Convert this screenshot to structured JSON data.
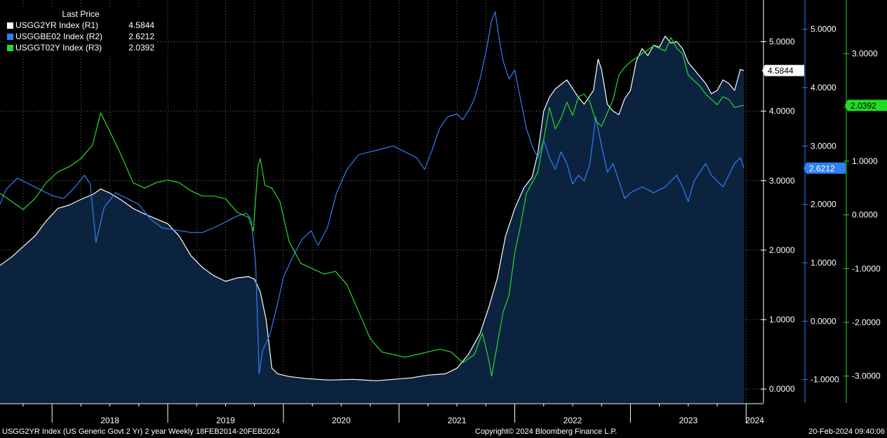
{
  "legend": {
    "title": "Last Price",
    "rows": [
      {
        "name": "USGG2YR Index  (R1)",
        "value": "4.5844",
        "color": "#ffffff"
      },
      {
        "name": "USGGBE02 Index  (R2)",
        "value": "2.6212",
        "color": "#2f7ff5"
      },
      {
        "name": "USGGT02Y Index  (R3)",
        "value": "2.0392",
        "color": "#22dd22"
      }
    ]
  },
  "footer": {
    "description": "USGG2YR Index (US Generic Govt 2 Yr) 2 year  Weekly 18FEB2014-20FEB2024",
    "copyright": "Copyright© 2024 Bloomberg Finance L.P.",
    "timestamp": "20-Feb-2024 09:40:06"
  },
  "chart_data": {
    "type": "line",
    "x_tick_labels": [
      "2018",
      "2019",
      "2020",
      "2021",
      "2022",
      "2023",
      "2024"
    ],
    "x_range": [
      2017.55,
      2024.15
    ],
    "grid": true,
    "legend_position": "top-left",
    "axes": [
      {
        "id": "R1",
        "ylim": [
          -0.2,
          5.6
        ],
        "ticks": [
          0,
          1,
          2,
          3,
          4,
          5
        ],
        "tick_labels": [
          "0.0000",
          "1.0000",
          "2.0000",
          "3.0000",
          "4.0000",
          "5.0000"
        ],
        "color": "#ffffff",
        "last_value": "4.5844",
        "tag_bg": "#ffffff",
        "tag_fg": "#000000"
      },
      {
        "id": "R2",
        "ylim": [
          -1.4,
          5.5
        ],
        "ticks": [
          -1,
          0,
          1,
          2,
          3,
          4,
          5
        ],
        "tick_labels": [
          "-1.0000",
          "0.0000",
          "1.0000",
          "2.0000",
          "3.0000",
          "4.0000",
          "5.0000"
        ],
        "color": "#2f7ff5",
        "last_value": "2.6212",
        "tag_bg": "#2f7ff5",
        "tag_fg": "#ffffff"
      },
      {
        "id": "R3",
        "ylim": [
          -3.5,
          4.0
        ],
        "ticks": [
          -3,
          -2,
          -1,
          0,
          1,
          2,
          3
        ],
        "tick_labels": [
          "-3.0000",
          "-2.0000",
          "-1.0000",
          "0.0000",
          "1.0000",
          "2.0000",
          "3.0000"
        ],
        "color": "#22dd22",
        "last_value": "2.0392",
        "tag_bg": "#22dd22",
        "tag_fg": "#000000"
      }
    ],
    "series": [
      {
        "name": "USGG2YR Index",
        "axis": "R1",
        "color": "#ffffff",
        "area": true,
        "area_color": "#0c2340",
        "points": [
          [
            2017.55,
            1.78
          ],
          [
            2017.65,
            1.9
          ],
          [
            2017.75,
            2.05
          ],
          [
            2017.85,
            2.2
          ],
          [
            2017.95,
            2.42
          ],
          [
            2018.05,
            2.6
          ],
          [
            2018.15,
            2.65
          ],
          [
            2018.25,
            2.73
          ],
          [
            2018.35,
            2.8
          ],
          [
            2018.42,
            2.88
          ],
          [
            2018.5,
            2.82
          ],
          [
            2018.6,
            2.72
          ],
          [
            2018.7,
            2.6
          ],
          [
            2018.8,
            2.52
          ],
          [
            2018.9,
            2.45
          ],
          [
            2019.0,
            2.38
          ],
          [
            2019.1,
            2.2
          ],
          [
            2019.2,
            1.92
          ],
          [
            2019.3,
            1.75
          ],
          [
            2019.4,
            1.63
          ],
          [
            2019.5,
            1.55
          ],
          [
            2019.6,
            1.6
          ],
          [
            2019.7,
            1.62
          ],
          [
            2019.75,
            1.58
          ],
          [
            2019.8,
            1.4
          ],
          [
            2019.85,
            1.0
          ],
          [
            2019.9,
            0.3
          ],
          [
            2019.95,
            0.22
          ],
          [
            2020.05,
            0.18
          ],
          [
            2020.2,
            0.15
          ],
          [
            2020.4,
            0.13
          ],
          [
            2020.6,
            0.14
          ],
          [
            2020.8,
            0.12
          ],
          [
            2020.95,
            0.14
          ],
          [
            2021.1,
            0.16
          ],
          [
            2021.25,
            0.2
          ],
          [
            2021.4,
            0.22
          ],
          [
            2021.5,
            0.3
          ],
          [
            2021.6,
            0.5
          ],
          [
            2021.7,
            0.8
          ],
          [
            2021.78,
            1.2
          ],
          [
            2021.85,
            1.6
          ],
          [
            2021.92,
            2.2
          ],
          [
            2022.0,
            2.6
          ],
          [
            2022.08,
            2.9
          ],
          [
            2022.15,
            3.05
          ],
          [
            2022.2,
            3.4
          ],
          [
            2022.25,
            4.0
          ],
          [
            2022.3,
            4.2
          ],
          [
            2022.35,
            4.32
          ],
          [
            2022.45,
            4.45
          ],
          [
            2022.55,
            4.2
          ],
          [
            2022.6,
            4.1
          ],
          [
            2022.68,
            4.3
          ],
          [
            2022.72,
            4.75
          ],
          [
            2022.75,
            4.6
          ],
          [
            2022.8,
            4.1
          ],
          [
            2022.85,
            4.0
          ],
          [
            2022.9,
            3.95
          ],
          [
            2022.95,
            4.18
          ],
          [
            2023.0,
            4.3
          ],
          [
            2023.05,
            4.72
          ],
          [
            2023.1,
            4.9
          ],
          [
            2023.15,
            4.8
          ],
          [
            2023.2,
            4.95
          ],
          [
            2023.25,
            4.92
          ],
          [
            2023.3,
            5.08
          ],
          [
            2023.35,
            4.98
          ],
          [
            2023.4,
            5.0
          ],
          [
            2023.45,
            4.9
          ],
          [
            2023.5,
            4.7
          ],
          [
            2023.55,
            4.6
          ],
          [
            2023.6,
            4.5
          ],
          [
            2023.65,
            4.4
          ],
          [
            2023.7,
            4.25
          ],
          [
            2023.75,
            4.3
          ],
          [
            2023.8,
            4.45
          ],
          [
            2023.85,
            4.4
          ],
          [
            2023.9,
            4.3
          ],
          [
            2023.95,
            4.6
          ],
          [
            2023.98,
            4.5844
          ]
        ]
      },
      {
        "name": "USGGBE02 Index",
        "axis": "R2",
        "color": "#2f7ff5",
        "area": false,
        "points": [
          [
            2017.55,
            2.0
          ],
          [
            2017.6,
            2.25
          ],
          [
            2017.7,
            2.45
          ],
          [
            2017.8,
            2.35
          ],
          [
            2017.9,
            2.25
          ],
          [
            2018.0,
            2.15
          ],
          [
            2018.1,
            2.1
          ],
          [
            2018.2,
            2.3
          ],
          [
            2018.28,
            2.5
          ],
          [
            2018.33,
            2.35
          ],
          [
            2018.38,
            1.35
          ],
          [
            2018.45,
            1.95
          ],
          [
            2018.55,
            2.2
          ],
          [
            2018.65,
            2.1
          ],
          [
            2018.75,
            2.0
          ],
          [
            2018.85,
            1.75
          ],
          [
            2018.95,
            1.6
          ],
          [
            2019.0,
            1.58
          ],
          [
            2019.1,
            1.55
          ],
          [
            2019.2,
            1.52
          ],
          [
            2019.3,
            1.52
          ],
          [
            2019.4,
            1.6
          ],
          [
            2019.5,
            1.7
          ],
          [
            2019.6,
            1.8
          ],
          [
            2019.68,
            1.85
          ],
          [
            2019.72,
            1.75
          ],
          [
            2019.76,
            1.0
          ],
          [
            2019.79,
            -0.9
          ],
          [
            2019.82,
            -0.5
          ],
          [
            2019.88,
            -0.25
          ],
          [
            2019.95,
            0.3
          ],
          [
            2020.0,
            0.75
          ],
          [
            2020.08,
            1.1
          ],
          [
            2020.16,
            1.4
          ],
          [
            2020.24,
            1.55
          ],
          [
            2020.3,
            1.3
          ],
          [
            2020.38,
            1.6
          ],
          [
            2020.46,
            2.2
          ],
          [
            2020.55,
            2.6
          ],
          [
            2020.65,
            2.85
          ],
          [
            2020.75,
            2.9
          ],
          [
            2020.85,
            2.95
          ],
          [
            2020.95,
            3.0
          ],
          [
            2021.05,
            2.9
          ],
          [
            2021.15,
            2.8
          ],
          [
            2021.22,
            2.6
          ],
          [
            2021.28,
            2.9
          ],
          [
            2021.35,
            3.3
          ],
          [
            2021.42,
            3.5
          ],
          [
            2021.5,
            3.55
          ],
          [
            2021.55,
            3.45
          ],
          [
            2021.6,
            3.6
          ],
          [
            2021.65,
            3.8
          ],
          [
            2021.7,
            4.15
          ],
          [
            2021.75,
            4.6
          ],
          [
            2021.8,
            5.15
          ],
          [
            2021.83,
            5.3
          ],
          [
            2021.86,
            4.9
          ],
          [
            2021.9,
            4.45
          ],
          [
            2021.95,
            4.15
          ],
          [
            2022.0,
            4.3
          ],
          [
            2022.05,
            3.8
          ],
          [
            2022.1,
            3.3
          ],
          [
            2022.15,
            3.0
          ],
          [
            2022.2,
            2.8
          ],
          [
            2022.25,
            3.1
          ],
          [
            2022.3,
            2.8
          ],
          [
            2022.35,
            2.6
          ],
          [
            2022.4,
            2.9
          ],
          [
            2022.45,
            2.7
          ],
          [
            2022.5,
            2.35
          ],
          [
            2022.55,
            2.5
          ],
          [
            2022.6,
            2.4
          ],
          [
            2022.65,
            2.7
          ],
          [
            2022.7,
            3.5
          ],
          [
            2022.75,
            3.0
          ],
          [
            2022.8,
            2.55
          ],
          [
            2022.85,
            2.7
          ],
          [
            2022.9,
            2.4
          ],
          [
            2022.95,
            2.1
          ],
          [
            2023.0,
            2.2
          ],
          [
            2023.1,
            2.3
          ],
          [
            2023.2,
            2.2
          ],
          [
            2023.3,
            2.3
          ],
          [
            2023.4,
            2.5
          ],
          [
            2023.45,
            2.3
          ],
          [
            2023.5,
            2.05
          ],
          [
            2023.55,
            2.4
          ],
          [
            2023.65,
            2.7
          ],
          [
            2023.7,
            2.5
          ],
          [
            2023.75,
            2.4
          ],
          [
            2023.8,
            2.3
          ],
          [
            2023.85,
            2.5
          ],
          [
            2023.9,
            2.7
          ],
          [
            2023.95,
            2.8
          ],
          [
            2023.98,
            2.6212
          ]
        ]
      },
      {
        "name": "USGGT02Y Index",
        "axis": "R3",
        "color": "#22dd22",
        "area": false,
        "points": [
          [
            2017.55,
            0.4
          ],
          [
            2017.65,
            0.25
          ],
          [
            2017.75,
            0.1
          ],
          [
            2017.85,
            0.3
          ],
          [
            2017.95,
            0.6
          ],
          [
            2018.05,
            0.8
          ],
          [
            2018.15,
            0.9
          ],
          [
            2018.25,
            1.05
          ],
          [
            2018.35,
            1.3
          ],
          [
            2018.42,
            1.9
          ],
          [
            2018.5,
            1.55
          ],
          [
            2018.6,
            1.1
          ],
          [
            2018.7,
            0.6
          ],
          [
            2018.8,
            0.5
          ],
          [
            2018.9,
            0.6
          ],
          [
            2019.0,
            0.65
          ],
          [
            2019.1,
            0.6
          ],
          [
            2019.2,
            0.45
          ],
          [
            2019.3,
            0.35
          ],
          [
            2019.4,
            0.35
          ],
          [
            2019.5,
            0.3
          ],
          [
            2019.6,
            0.05
          ],
          [
            2019.7,
            -0.05
          ],
          [
            2019.74,
            -0.3
          ],
          [
            2019.78,
            0.9
          ],
          [
            2019.8,
            1.05
          ],
          [
            2019.84,
            0.55
          ],
          [
            2019.9,
            0.5
          ],
          [
            2019.97,
            0.25
          ],
          [
            2020.05,
            -0.5
          ],
          [
            2020.15,
            -0.9
          ],
          [
            2020.25,
            -1.0
          ],
          [
            2020.35,
            -1.1
          ],
          [
            2020.45,
            -1.05
          ],
          [
            2020.55,
            -1.3
          ],
          [
            2020.65,
            -1.8
          ],
          [
            2020.75,
            -2.3
          ],
          [
            2020.85,
            -2.55
          ],
          [
            2020.95,
            -2.6
          ],
          [
            2021.05,
            -2.65
          ],
          [
            2021.15,
            -2.6
          ],
          [
            2021.25,
            -2.55
          ],
          [
            2021.35,
            -2.5
          ],
          [
            2021.45,
            -2.55
          ],
          [
            2021.55,
            -2.75
          ],
          [
            2021.65,
            -2.6
          ],
          [
            2021.72,
            -2.2
          ],
          [
            2021.77,
            -2.65
          ],
          [
            2021.8,
            -3.0
          ],
          [
            2021.85,
            -2.4
          ],
          [
            2021.9,
            -1.8
          ],
          [
            2021.95,
            -1.5
          ],
          [
            2022.0,
            -0.7
          ],
          [
            2022.05,
            -0.2
          ],
          [
            2022.1,
            0.4
          ],
          [
            2022.15,
            0.6
          ],
          [
            2022.2,
            0.8
          ],
          [
            2022.25,
            1.4
          ],
          [
            2022.3,
            2.0
          ],
          [
            2022.35,
            1.6
          ],
          [
            2022.4,
            1.8
          ],
          [
            2022.45,
            2.1
          ],
          [
            2022.5,
            1.85
          ],
          [
            2022.55,
            2.2
          ],
          [
            2022.6,
            2.25
          ],
          [
            2022.65,
            2.1
          ],
          [
            2022.7,
            1.75
          ],
          [
            2022.75,
            1.65
          ],
          [
            2022.8,
            1.9
          ],
          [
            2022.85,
            2.15
          ],
          [
            2022.9,
            2.6
          ],
          [
            2022.95,
            2.75
          ],
          [
            2023.0,
            2.85
          ],
          [
            2023.1,
            3.0
          ],
          [
            2023.2,
            3.15
          ],
          [
            2023.3,
            3.05
          ],
          [
            2023.35,
            3.3
          ],
          [
            2023.4,
            3.1
          ],
          [
            2023.45,
            3.0
          ],
          [
            2023.5,
            2.6
          ],
          [
            2023.55,
            2.5
          ],
          [
            2023.6,
            2.4
          ],
          [
            2023.65,
            2.25
          ],
          [
            2023.7,
            2.15
          ],
          [
            2023.75,
            2.05
          ],
          [
            2023.8,
            2.2
          ],
          [
            2023.85,
            2.15
          ],
          [
            2023.9,
            2.0
          ],
          [
            2023.98,
            2.0392
          ]
        ]
      }
    ]
  }
}
